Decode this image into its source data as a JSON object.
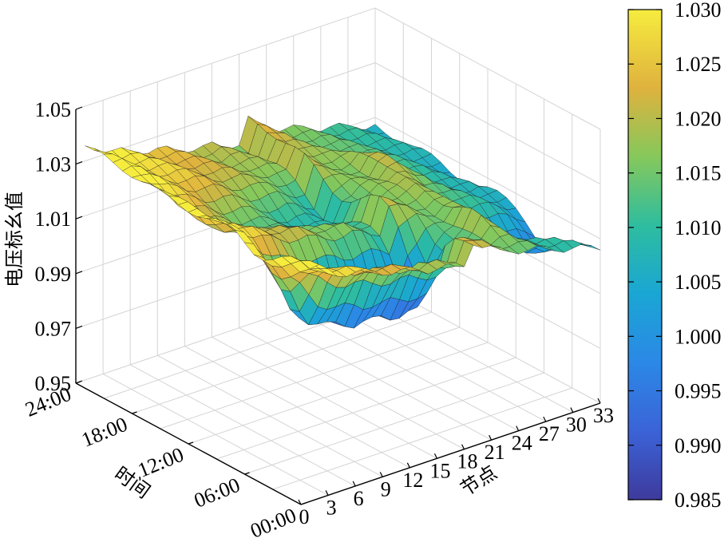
{
  "chart_data": {
    "type": "surface3d",
    "zlabel": "电压标幺值",
    "xlabel": "节点",
    "ylabel": "时间",
    "x_ticks": [
      "0",
      "3",
      "6",
      "9",
      "12",
      "15",
      "18",
      "21",
      "24",
      "27",
      "30",
      "33"
    ],
    "y_ticks": [
      "00:00",
      "06:00",
      "12:00",
      "18:00",
      "24:00"
    ],
    "z_ticks": [
      "0.95",
      "0.97",
      "0.99",
      "1.01",
      "1.03",
      "1.05"
    ],
    "xlim": [
      0,
      33
    ],
    "ylim": [
      0,
      24
    ],
    "zlim": [
      0.95,
      1.05
    ],
    "grid": true,
    "colormap": "parula",
    "colorbar": {
      "min": 0.985,
      "max": 1.03,
      "ticks": [
        "1.030",
        "1.025",
        "1.020",
        "1.015",
        "1.010",
        "1.005",
        "1.000",
        "0.995",
        "0.990",
        "0.985"
      ]
    },
    "surface_profile": {
      "nodes": [
        1,
        2,
        3,
        4,
        5,
        6,
        7,
        8,
        9,
        10,
        11,
        12,
        13,
        14,
        15,
        16,
        17,
        18,
        19,
        20,
        21,
        22,
        23,
        24,
        25,
        26,
        27,
        28,
        29,
        30,
        31,
        32,
        33
      ],
      "peak_values": [
        1.03,
        1.026,
        1.018,
        1.012,
        1.005,
        1.0,
        0.998,
        0.996,
        0.995,
        0.994,
        0.993,
        0.993,
        0.992,
        0.992,
        0.991,
        0.991,
        0.991,
        0.99,
        1.0,
        1.005,
        1.01,
        1.012,
        1.014,
        1.022,
        1.02,
        1.012,
        1.008,
        1.005,
        1.002,
        1.0,
        0.998,
        0.996,
        0.995
      ],
      "offpeak_values": [
        1.035,
        1.034,
        1.032,
        1.03,
        1.029,
        1.028,
        1.027,
        1.026,
        1.025,
        1.024,
        1.023,
        1.022,
        1.021,
        1.02,
        1.02,
        1.019,
        1.018,
        1.017,
        1.025,
        1.022,
        1.02,
        1.018,
        1.017,
        1.016,
        1.015,
        1.014,
        1.013,
        1.012,
        1.011,
        1.01,
        1.009,
        1.008,
        1.007
      ],
      "midday_node_values": [
        1.03,
        1.028,
        1.02,
        1.016,
        1.012,
        1.01,
        1.008,
        1.006,
        1.005,
        1.004,
        1.003,
        1.002,
        1.001,
        1.0,
        0.999,
        0.998,
        0.997,
        0.996,
        1.005,
        1.008,
        1.012,
        1.016,
        1.018,
        1.028,
        1.028,
        1.02,
        1.016,
        1.012,
        1.01,
        1.008,
        1.006,
        1.005,
        1.003
      ]
    }
  }
}
